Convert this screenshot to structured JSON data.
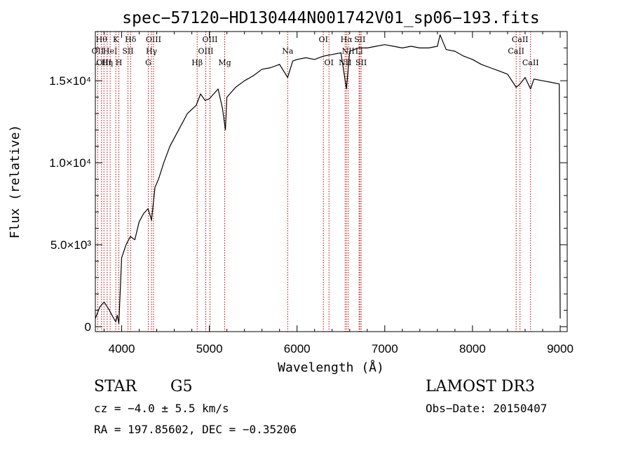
{
  "chart_data": {
    "type": "line",
    "title": "spec−57120−HD130444N001742V01_sp06−193.fits",
    "xlabel": "Wavelength (Å)",
    "ylabel": "Flux (relative)",
    "xlim": [
      3700,
      9080
    ],
    "ylim": [
      -300,
      18000
    ],
    "x_ticks": [
      4000,
      5000,
      6000,
      7000,
      8000,
      9000
    ],
    "x_tick_labels": [
      "4000",
      "5000",
      "6000",
      "7000",
      "8000",
      "9000"
    ],
    "y_ticks": [
      0,
      5000,
      10000,
      15000
    ],
    "y_tick_labels": [
      "0",
      "5.0×10³",
      "1.0×10⁴",
      "1.5×10⁴"
    ],
    "grid": false,
    "series": [
      {
        "color": "#000000",
        "x": [
          3700,
          3750,
          3800,
          3850,
          3880,
          3900,
          3933,
          3950,
          3968,
          4000,
          4050,
          4100,
          4150,
          4200,
          4250,
          4300,
          4340,
          4380,
          4420,
          4480,
          4550,
          4650,
          4750,
          4850,
          4900,
          4950,
          5000,
          5100,
          5150,
          5183,
          5200,
          5300,
          5400,
          5500,
          5600,
          5700,
          5800,
          5893,
          5950,
          6000,
          6100,
          6200,
          6300,
          6400,
          6500,
          6563,
          6600,
          6700,
          6800,
          6900,
          7000,
          7100,
          7200,
          7300,
          7400,
          7500,
          7600,
          7630,
          7700,
          7800,
          7900,
          8000,
          8100,
          8200,
          8300,
          8400,
          8498,
          8542,
          8600,
          8662,
          8700,
          8800,
          8900,
          8990,
          9000
        ],
        "y": [
          500,
          1200,
          1500,
          1100,
          800,
          600,
          300,
          700,
          200,
          4200,
          5000,
          5500,
          5300,
          6400,
          6900,
          7200,
          6500,
          8500,
          9000,
          10000,
          11000,
          12000,
          13000,
          13500,
          14200,
          13800,
          13900,
          14500,
          13300,
          12000,
          14000,
          14600,
          15000,
          15300,
          15700,
          15800,
          16000,
          15200,
          16200,
          16300,
          16400,
          16300,
          16500,
          16600,
          16700,
          14500,
          16800,
          17000,
          17000,
          17100,
          17200,
          17100,
          17000,
          17100,
          17000,
          17000,
          17100,
          17800,
          16900,
          16800,
          16500,
          16300,
          16000,
          15800,
          15600,
          15400,
          14600,
          14800,
          15200,
          14500,
          15100,
          15000,
          14900,
          14800,
          500
        ]
      }
    ],
    "lines": [
      {
        "wavelength": 3727,
        "labels": [
          "OII"
        ],
        "row": 2
      },
      {
        "wavelength": 3770,
        "labels": [
          "Hθ"
        ],
        "row": 1
      },
      {
        "wavelength": 3798,
        "labels": [
          "OIII"
        ],
        "row": 3
      },
      {
        "wavelength": 3835,
        "labels": [
          "Hη"
        ],
        "row": 3
      },
      {
        "wavelength": 3869,
        "labels": [
          "HeI"
        ],
        "row": 2
      },
      {
        "wavelength": 3933,
        "labels": [
          "K"
        ],
        "row": 1
      },
      {
        "wavelength": 3968,
        "labels": [
          "H"
        ],
        "row": 3
      },
      {
        "wavelength": 4072,
        "labels": [
          "SII"
        ],
        "row": 2
      },
      {
        "wavelength": 4102,
        "labels": [
          "Hδ"
        ],
        "row": 1
      },
      {
        "wavelength": 4304,
        "labels": [
          "G"
        ],
        "row": 3
      },
      {
        "wavelength": 4340,
        "labels": [
          "Hγ"
        ],
        "row": 2
      },
      {
        "wavelength": 4363,
        "labels": [
          "OIII"
        ],
        "row": 1
      },
      {
        "wavelength": 4861,
        "labels": [
          "Hβ"
        ],
        "row": 3
      },
      {
        "wavelength": 4959,
        "labels": [
          "OIII"
        ],
        "row": 2
      },
      {
        "wavelength": 5007,
        "labels": [
          "OIII"
        ],
        "row": 1
      },
      {
        "wavelength": 5175,
        "labels": [
          "Mg"
        ],
        "row": 3
      },
      {
        "wavelength": 5893,
        "labels": [
          "Na"
        ],
        "row": 2
      },
      {
        "wavelength": 6300,
        "labels": [
          "OI"
        ],
        "row": 1
      },
      {
        "wavelength": 6364,
        "labels": [
          "OI"
        ],
        "row": 3
      },
      {
        "wavelength": 6548,
        "labels": [
          "NII"
        ],
        "row": 3
      },
      {
        "wavelength": 6563,
        "labels": [
          "Hα"
        ],
        "row": 1
      },
      {
        "wavelength": 6583,
        "labels": [
          "NII"
        ],
        "row": 2
      },
      {
        "wavelength": 6707,
        "labels": [
          "Li"
        ],
        "row": 2
      },
      {
        "wavelength": 6716,
        "labels": [
          "SII"
        ],
        "row": 1
      },
      {
        "wavelength": 6731,
        "labels": [
          "SII"
        ],
        "row": 3
      },
      {
        "wavelength": 8498,
        "labels": [
          "CaII"
        ],
        "row": 2
      },
      {
        "wavelength": 8542,
        "labels": [
          "CaII"
        ],
        "row": 1
      },
      {
        "wavelength": 8662,
        "labels": [
          "CaII"
        ],
        "row": 3
      }
    ],
    "line_color": "#c00000"
  },
  "footer": {
    "object_class": "STAR",
    "subclass": "G5",
    "survey": "LAMOST DR3",
    "cz": "cz = −4.0 ± 5.5 km/s",
    "obs_date": "Obs−Date: 20150407",
    "radec": "RA = 197.85602, DEC =  −0.35206"
  }
}
